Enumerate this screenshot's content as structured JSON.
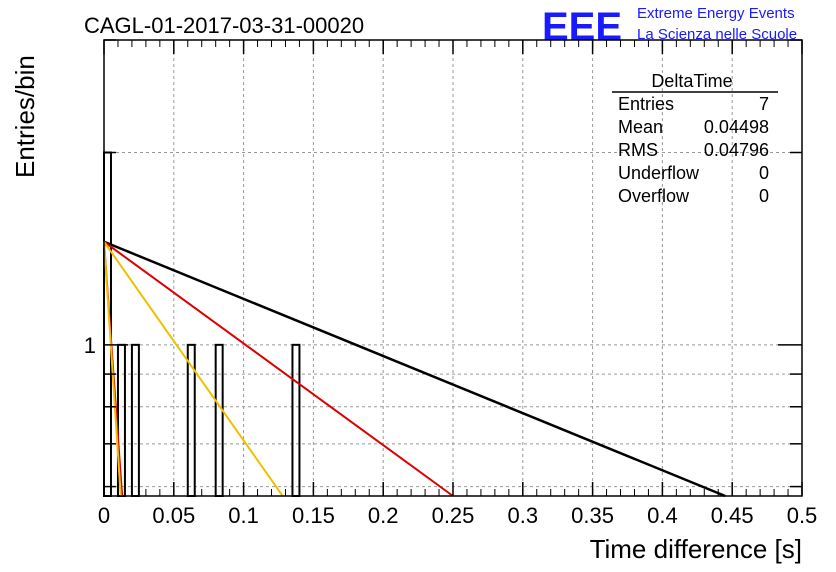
{
  "chart_data": {
    "type": "bar",
    "title": "CAGL-01-2017-03-31-00020",
    "xlabel": "Time difference [s]",
    "ylabel": "Entries/bin",
    "xlim": [
      0,
      0.5
    ],
    "ylim": [
      0.58,
      3.0
    ],
    "yscale": "log",
    "grid": true,
    "legend": "none",
    "x_ticks": [
      "0",
      "0.05",
      "0.1",
      "0.15",
      "0.2",
      "0.25",
      "0.3",
      "0.35",
      "0.4",
      "0.45",
      "0.5"
    ],
    "y_ticks": [
      "1"
    ],
    "bin_width": 0.005,
    "bins": [
      {
        "x": 0.0,
        "count": 2
      },
      {
        "x": 0.01,
        "count": 1
      },
      {
        "x": 0.02,
        "count": 1
      },
      {
        "x": 0.06,
        "count": 1
      },
      {
        "x": 0.08,
        "count": 1
      },
      {
        "x": 0.135,
        "count": 1
      }
    ],
    "fit_lines": [
      {
        "color": "#000000",
        "points": [
          [
            0.0,
            1.45
          ],
          [
            0.445,
            0.58
          ]
        ]
      },
      {
        "color": "#dd0000",
        "points": [
          [
            0.0,
            1.45
          ],
          [
            0.25,
            0.58
          ]
        ]
      },
      {
        "color": "#f0c000",
        "points": [
          [
            0.0,
            1.45
          ],
          [
            0.128,
            0.58
          ]
        ]
      },
      {
        "color": "#dd0000",
        "points": [
          [
            0.0,
            1.45
          ],
          [
            0.013,
            0.58
          ]
        ]
      },
      {
        "color": "#f0c000",
        "points": [
          [
            0.0,
            1.45
          ],
          [
            0.012,
            0.58
          ]
        ]
      }
    ],
    "stats": {
      "title": "DeltaTime",
      "rows": [
        {
          "label": "Entries",
          "value": "7"
        },
        {
          "label": "Mean",
          "value": "0.04498"
        },
        {
          "label": "RMS",
          "value": "0.04796"
        },
        {
          "label": "Underflow",
          "value": "0"
        },
        {
          "label": "Overflow",
          "value": "0"
        }
      ]
    }
  },
  "logo": {
    "mark": "EEE",
    "line1": "Extreme Energy Events",
    "line2": "La Scienza nelle Scuole"
  }
}
